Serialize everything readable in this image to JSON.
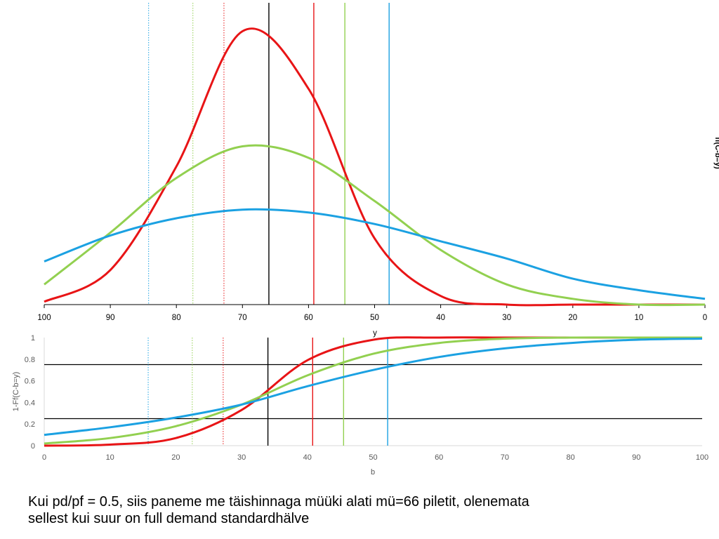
{
  "chart_data": [
    {
      "type": "line",
      "title": "",
      "xlabel": "y",
      "ylabel": "ff(C-b=y)",
      "xlim": [
        100,
        0
      ],
      "x_reversed": true,
      "y_axis_shown": false,
      "mean": 66,
      "x_ticks": [
        "100",
        "90",
        "80",
        "70",
        "60",
        "50",
        "40",
        "30",
        "20",
        "10",
        "0"
      ],
      "series": [
        {
          "color": "#E81416",
          "values_at_ticks": [
            0.01,
            0.12,
            0.48,
            0.95,
            0.75,
            0.23,
            0.03,
            0.0,
            0.0,
            0.0,
            0.0
          ]
        },
        {
          "color": "#92D050",
          "values_at_ticks": [
            0.07,
            0.25,
            0.44,
            0.55,
            0.51,
            0.36,
            0.19,
            0.07,
            0.02,
            0.0,
            0.0
          ]
        },
        {
          "color": "#1BA1E2",
          "values_at_ticks": [
            0.15,
            0.24,
            0.3,
            0.33,
            0.32,
            0.28,
            0.22,
            0.16,
            0.09,
            0.05,
            0.02
          ]
        }
      ],
      "vertical_lines": [
        {
          "x": 66,
          "color": "#000000",
          "style": "solid"
        },
        {
          "x": 59.2,
          "color": "#E81416",
          "style": "solid"
        },
        {
          "x": 54.5,
          "color": "#92D050",
          "style": "solid"
        },
        {
          "x": 47.8,
          "color": "#1BA1E2",
          "style": "solid"
        },
        {
          "x": 72.8,
          "color": "#E81416",
          "style": "dotted"
        },
        {
          "x": 77.5,
          "color": "#92D050",
          "style": "dotted"
        },
        {
          "x": 84.2,
          "color": "#1BA1E2",
          "style": "dotted"
        }
      ],
      "grid": false
    },
    {
      "type": "line",
      "title": "",
      "xlabel": "b",
      "ylabel": "1-Ff(C-b=y)",
      "xlim": [
        0,
        100
      ],
      "ylim": [
        0,
        1
      ],
      "x_ticks": [
        "0",
        "10",
        "20",
        "30",
        "40",
        "50",
        "60",
        "70",
        "80",
        "90",
        "100"
      ],
      "y_ticks": [
        "0",
        "0.2",
        "0.4",
        "0.6",
        "0.8",
        "1"
      ],
      "series": [
        {
          "color": "#E81416",
          "values_at_ticks": [
            0.0,
            0.01,
            0.07,
            0.33,
            0.79,
            0.98,
            1.0,
            1.0,
            1.0,
            1.0,
            1.0
          ]
        },
        {
          "color": "#92D050",
          "values_at_ticks": [
            0.02,
            0.07,
            0.18,
            0.38,
            0.65,
            0.85,
            0.95,
            0.99,
            1.0,
            1.0,
            1.0
          ]
        },
        {
          "color": "#1BA1E2",
          "values_at_ticks": [
            0.1,
            0.17,
            0.26,
            0.38,
            0.55,
            0.7,
            0.82,
            0.9,
            0.95,
            0.98,
            0.99
          ]
        }
      ],
      "horizontal_lines": [
        {
          "y": 0.75,
          "color": "#000000"
        },
        {
          "y": 0.25,
          "color": "#000000"
        }
      ],
      "vertical_lines": [
        {
          "x": 34,
          "color": "#000000",
          "style": "solid"
        },
        {
          "x": 40.8,
          "color": "#E81416",
          "style": "solid"
        },
        {
          "x": 45.5,
          "color": "#92D050",
          "style": "solid"
        },
        {
          "x": 52.2,
          "color": "#1BA1E2",
          "style": "solid"
        },
        {
          "x": 27.2,
          "color": "#E81416",
          "style": "dotted"
        },
        {
          "x": 22.5,
          "color": "#92D050",
          "style": "dotted"
        },
        {
          "x": 15.8,
          "color": "#1BA1E2",
          "style": "dotted"
        }
      ],
      "grid": false
    }
  ],
  "caption": {
    "line1": "Kui pd/pf = 0.5, siis paneme me täishinnaga müüki alati mü=66 piletit, olenemata",
    "line2": "sellest kui suur on full demand standardhälve"
  },
  "colors": {
    "red": "#E81416",
    "green": "#92D050",
    "blue": "#1BA1E2",
    "axis": "#D9D9D9",
    "text": "#595959"
  }
}
